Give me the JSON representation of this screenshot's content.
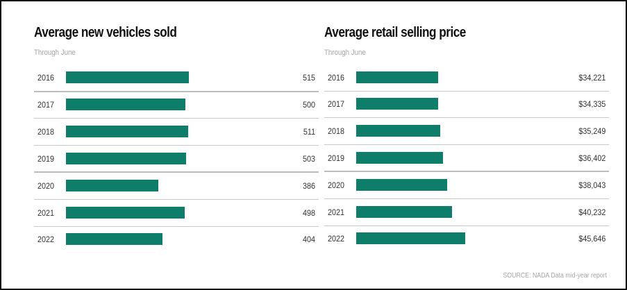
{
  "chart_data": [
    {
      "type": "bar",
      "orientation": "horizontal",
      "title": "Average new vehicles sold",
      "subtitle": "Through June",
      "categories": [
        "2016",
        "2017",
        "2018",
        "2019",
        "2020",
        "2021",
        "2022"
      ],
      "values": [
        515,
        500,
        511,
        503,
        386,
        498,
        404
      ],
      "value_labels": [
        "515",
        "500",
        "511",
        "503",
        "386",
        "498",
        "404"
      ],
      "xlim": [
        0,
        1000
      ],
      "grid": false,
      "bar_color": "#0e7e6a"
    },
    {
      "type": "bar",
      "orientation": "horizontal",
      "title": "Average retail selling price",
      "subtitle": "Through June",
      "categories": [
        "2016",
        "2017",
        "2018",
        "2019",
        "2020",
        "2021",
        "2022"
      ],
      "values": [
        34221,
        34335,
        35249,
        36402,
        38043,
        40232,
        45646
      ],
      "value_labels": [
        "$34,221",
        "$34,335",
        "$35,249",
        "$36,402",
        "$38,043",
        "$40,232",
        "$45,646"
      ],
      "xlim": [
        0,
        100000
      ],
      "grid": false,
      "bar_color": "#0e7e6a"
    }
  ],
  "footer": {
    "source": "SOURCE: NADA Data mid-year report"
  }
}
